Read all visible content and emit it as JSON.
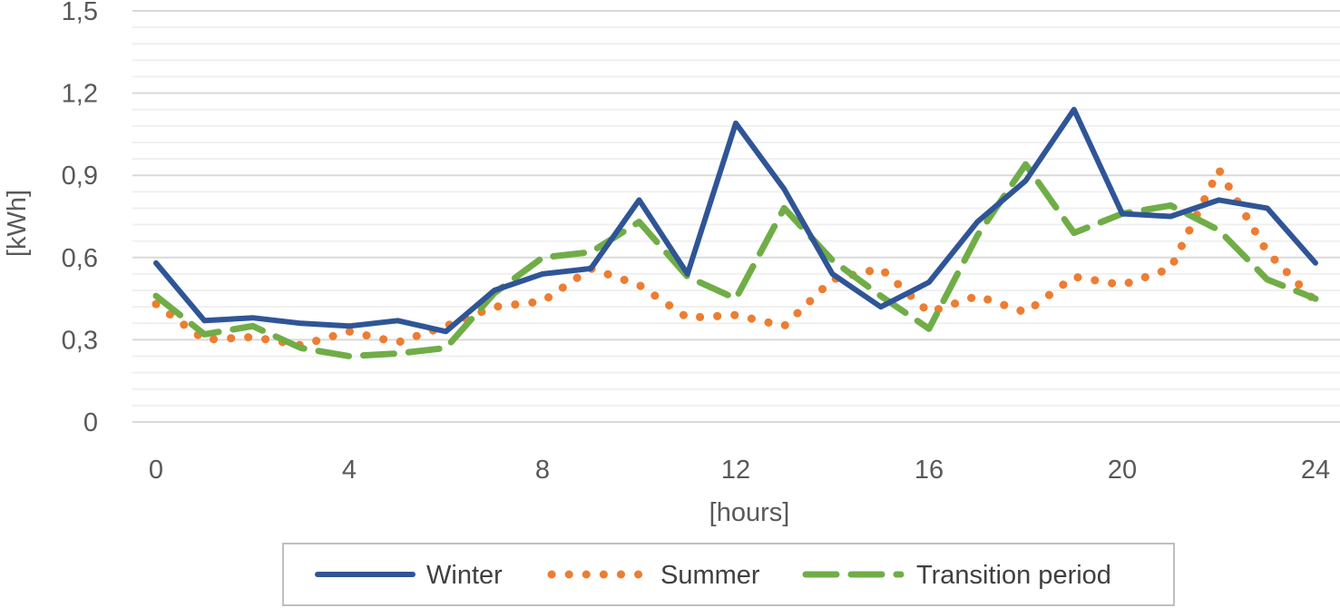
{
  "chart_data": {
    "type": "line",
    "title": "",
    "xlabel": "[hours]",
    "ylabel": "[kWh]",
    "xlim": [
      0,
      24
    ],
    "ylim": [
      0,
      1.5
    ],
    "x_ticks": [
      0,
      4,
      8,
      12,
      16,
      20,
      24
    ],
    "x_tick_labels": [
      "0",
      "4",
      "8",
      "12",
      "16",
      "20",
      "24"
    ],
    "y_ticks": [
      0,
      0.3,
      0.6,
      0.9,
      1.2,
      1.5
    ],
    "y_tick_labels": [
      "0",
      "0,3",
      "0,6",
      "0,9",
      "1,2",
      "1,5"
    ],
    "y_minor_step": 0.06,
    "grid": true,
    "legend_position": "bottom",
    "x": [
      0,
      1,
      2,
      3,
      4,
      5,
      6,
      7,
      8,
      9,
      10,
      11,
      12,
      13,
      14,
      15,
      16,
      17,
      18,
      19,
      20,
      21,
      22,
      23,
      24
    ],
    "series": [
      {
        "name": "Winter",
        "color": "#2F5597",
        "style": "solid",
        "values": [
          0.58,
          0.37,
          0.38,
          0.36,
          0.35,
          0.37,
          0.33,
          0.48,
          0.54,
          0.56,
          0.81,
          0.54,
          1.09,
          0.85,
          0.54,
          0.42,
          0.51,
          0.73,
          0.88,
          1.14,
          0.76,
          0.75,
          0.81,
          0.78,
          0.58
        ]
      },
      {
        "name": "Summer",
        "color": "#ED7D31",
        "style": "dotted",
        "values": [
          0.43,
          0.3,
          0.31,
          0.28,
          0.33,
          0.29,
          0.35,
          0.42,
          0.44,
          0.56,
          0.5,
          0.38,
          0.39,
          0.35,
          0.52,
          0.56,
          0.4,
          0.46,
          0.4,
          0.53,
          0.5,
          0.56,
          0.92,
          0.62,
          0.44
        ]
      },
      {
        "name": "Transition period",
        "color": "#70AD47",
        "style": "dashed",
        "values": [
          0.46,
          0.32,
          0.35,
          0.27,
          0.24,
          0.25,
          0.27,
          0.47,
          0.6,
          0.62,
          0.73,
          0.53,
          0.45,
          0.78,
          0.59,
          0.46,
          0.34,
          0.68,
          0.94,
          0.69,
          0.76,
          0.79,
          0.7,
          0.52,
          0.45
        ]
      }
    ]
  }
}
